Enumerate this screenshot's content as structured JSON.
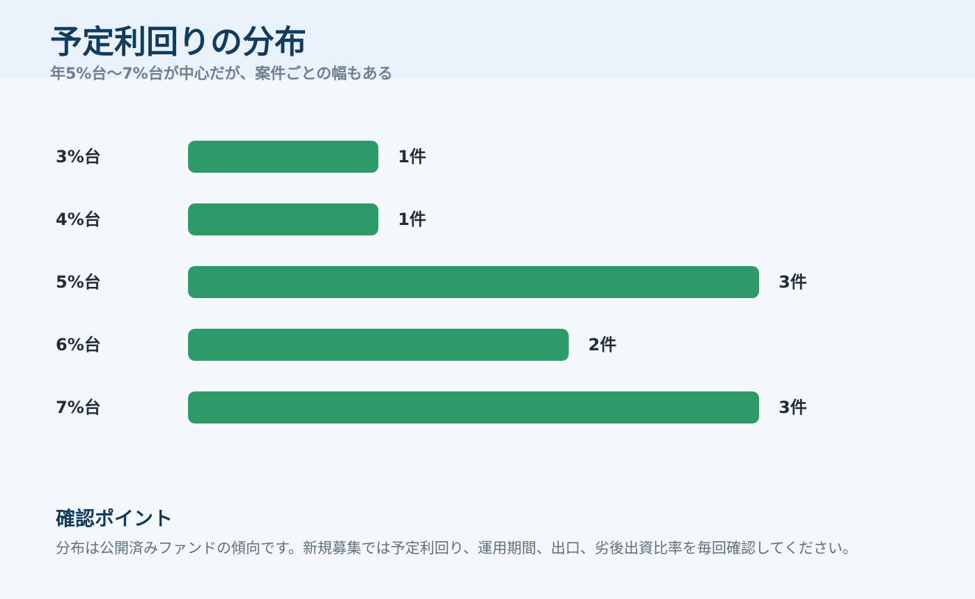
{
  "header": {
    "title": "予定利回りの分布",
    "subtitle": "年5%台〜7%台が中心だが、案件ごとの幅もある"
  },
  "chart_data": {
    "type": "bar",
    "orientation": "horizontal",
    "categories": [
      "3%台",
      "4%台",
      "5%台",
      "6%台",
      "7%台"
    ],
    "values": [
      1,
      1,
      3,
      2,
      3
    ],
    "value_labels": [
      "1件",
      "1件",
      "3件",
      "2件",
      "3件"
    ],
    "title": "予定利回りの分布",
    "subtitle": "年5%台〜7%台が中心だが、案件ごとの幅もある",
    "xlim": [
      0,
      3
    ],
    "grid": false,
    "bar_color": "#2f9a69"
  },
  "note": {
    "title": "確認ポイント",
    "body": "分布は公開済みファンドの傾向です。新規募集では予定利回り、運用期間、出口、劣後出資比率を毎回確認してください。"
  },
  "colors": {
    "accent": "#2f9a69",
    "heading": "#133c5c",
    "header_band": "#e9f2fa",
    "background": "#f4f8fb"
  }
}
